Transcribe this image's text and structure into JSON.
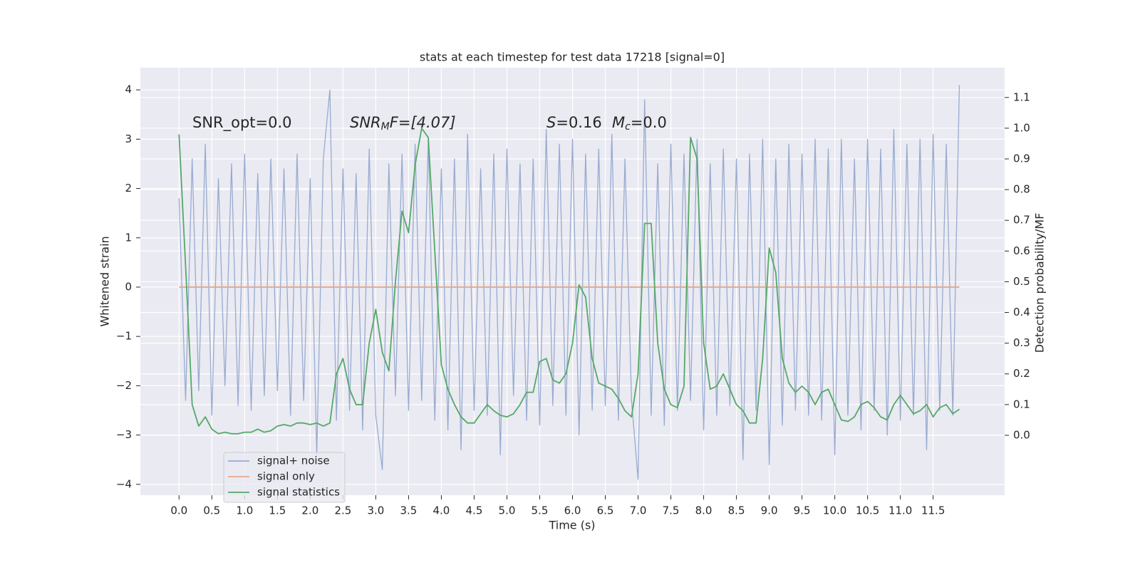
{
  "chart_data": {
    "type": "line",
    "title": "stats at each timestep for test data 17218 [signal=0]",
    "xlabel": "Time (s)",
    "ylabel": "Whitened strain",
    "y2label": "Detection probability/MF",
    "annotations": [
      [
        "SNR_opt=0.0"
      ],
      [
        "SNR",
        "M",
        "F=[4.07]"
      ],
      [
        "S",
        "=0.16"
      ],
      [
        "M",
        "c",
        "=0.0"
      ]
    ],
    "xlim": [
      -0.59,
      12.59
    ],
    "ylim": [
      -4.22,
      4.45
    ],
    "y2lim": [
      -0.195,
      1.197
    ],
    "xticks": [
      {
        "value": 0,
        "label": "0.0"
      },
      0.5,
      {
        "value": 1,
        "label": "1.0"
      },
      1.5,
      {
        "value": 2,
        "label": "2.0"
      },
      2.5,
      {
        "value": 3,
        "label": "3.0"
      },
      3.5,
      {
        "value": 4,
        "label": "4.0"
      },
      4.5,
      {
        "value": 5,
        "label": "5.0"
      },
      5.5,
      {
        "value": 6,
        "label": "6.0"
      },
      6.5,
      {
        "value": 7,
        "label": "7.0"
      },
      7.5,
      {
        "value": 8,
        "label": "8.0"
      },
      8.5,
      {
        "value": 9,
        "label": "9.0"
      },
      9.5,
      {
        "value": 10,
        "label": "10.0"
      },
      10.5,
      {
        "value": 11,
        "label": "11.0"
      },
      11.5
    ],
    "yticks": [
      {
        "value": -4,
        "label": "−4"
      },
      {
        "value": -3,
        "label": "−3"
      },
      {
        "value": -2,
        "label": "−2"
      },
      {
        "value": -1,
        "label": "−1"
      },
      0,
      1,
      2,
      3,
      4
    ],
    "y2ticks": [
      {
        "value": 0,
        "label": "0.0"
      },
      0.1,
      0.2,
      0.3,
      0.4,
      0.5,
      0.6,
      0.7,
      0.8,
      0.9,
      {
        "value": 1,
        "label": "1.0"
      },
      1.1
    ],
    "grid": true,
    "legend": "lower left",
    "x": [
      0,
      0.1,
      0.2,
      0.3,
      0.4,
      0.5,
      0.6,
      0.7,
      0.8,
      0.9,
      1,
      1.1,
      1.2,
      1.3,
      1.4,
      1.5,
      1.6,
      1.7,
      1.8,
      1.9,
      2,
      2.1,
      2.2,
      2.3,
      2.4,
      2.5,
      2.6,
      2.7,
      2.8,
      2.9,
      3,
      3.1,
      3.2,
      3.3,
      3.4,
      3.5,
      3.6,
      3.7,
      3.8,
      3.9,
      4,
      4.1,
      4.2,
      4.3,
      4.4,
      4.5,
      4.6,
      4.7,
      4.8,
      4.9,
      5,
      5.1,
      5.2,
      5.3,
      5.4,
      5.5,
      5.6,
      5.7,
      5.8,
      5.9,
      6,
      6.1,
      6.2,
      6.3,
      6.4,
      6.5,
      6.6,
      6.7,
      6.8,
      6.9,
      7,
      7.1,
      7.2,
      7.3,
      7.4,
      7.5,
      7.6,
      7.7,
      7.8,
      7.9,
      8,
      8.1,
      8.2,
      8.3,
      8.4,
      8.5,
      8.6,
      8.7,
      8.8,
      8.9,
      9,
      9.1,
      9.2,
      9.3,
      9.4,
      9.5,
      9.6,
      9.7,
      9.8,
      9.9,
      10,
      10.1,
      10.2,
      10.3,
      10.4,
      10.5,
      10.6,
      10.7,
      10.8,
      10.9,
      11,
      11.1,
      11.2,
      11.3,
      11.4,
      11.5,
      11.6,
      11.7,
      11.8,
      11.9
    ],
    "series": [
      {
        "name": "signal+ noise",
        "color": "#98abd0",
        "values": [
          1.8,
          -2.3,
          2.6,
          -2.1,
          2.9,
          -2.6,
          2.2,
          -2.0,
          2.5,
          -2.4,
          2.7,
          -2.5,
          2.3,
          -2.2,
          2.6,
          -2.1,
          2.4,
          -2.6,
          2.7,
          -2.3,
          2.2,
          -3.4,
          2.6,
          4.0,
          -2.7,
          2.4,
          -2.5,
          2.3,
          -2.9,
          2.8,
          -2.6,
          -3.7,
          2.5,
          -2.2,
          2.7,
          -2.5,
          2.9,
          -2.3,
          3.0,
          -2.7,
          2.4,
          -2.9,
          2.6,
          -3.3,
          3.1,
          -2.5,
          2.4,
          -2.6,
          2.7,
          -3.4,
          2.8,
          -2.2,
          2.5,
          -2.7,
          2.6,
          -2.8,
          3.2,
          -2.4,
          2.9,
          -2.6,
          3.0,
          -3.0,
          2.7,
          -2.5,
          2.8,
          -2.4,
          3.1,
          -2.7,
          2.6,
          -2.3,
          -3.9,
          3.8,
          -2.6,
          2.5,
          -2.8,
          2.9,
          -2.5,
          2.7,
          -2.3,
          3.0,
          -2.9,
          2.5,
          -2.6,
          2.8,
          -2.4,
          2.6,
          -3.5,
          2.7,
          -2.5,
          3.0,
          -3.6,
          2.6,
          -2.8,
          2.9,
          -2.5,
          2.7,
          -2.6,
          3.0,
          -2.7,
          2.8,
          -3.4,
          3.0,
          -2.6,
          2.6,
          -2.9,
          3.0,
          -2.5,
          2.8,
          -3.0,
          3.2,
          -2.7,
          2.9,
          -2.6,
          3.0,
          -3.3,
          3.1,
          -2.5,
          2.9,
          -2.6,
          4.1
        ]
      },
      {
        "name": "signal only",
        "color": "#e6a98a",
        "values": [
          0,
          0,
          0,
          0,
          0,
          0,
          0,
          0,
          0,
          0,
          0,
          0,
          0,
          0,
          0,
          0,
          0,
          0,
          0,
          0,
          0,
          0,
          0,
          0,
          0,
          0,
          0,
          0,
          0,
          0,
          0,
          0,
          0,
          0,
          0,
          0,
          0,
          0,
          0,
          0,
          0,
          0,
          0,
          0,
          0,
          0,
          0,
          0,
          0,
          0,
          0,
          0,
          0,
          0,
          0,
          0,
          0,
          0,
          0,
          0,
          0,
          0,
          0,
          0,
          0,
          0,
          0,
          0,
          0,
          0,
          0,
          0,
          0,
          0,
          0,
          0,
          0,
          0,
          0,
          0,
          0,
          0,
          0,
          0,
          0,
          0,
          0,
          0,
          0,
          0,
          0,
          0,
          0,
          0,
          0,
          0,
          0,
          0,
          0,
          0,
          0,
          0,
          0,
          0,
          0,
          0,
          0,
          0,
          0,
          0,
          0,
          0,
          0,
          0,
          0,
          0,
          0,
          0,
          0,
          0
        ]
      },
      {
        "name": "signal statistics",
        "color": "#55a868",
        "axis": "y2",
        "values": [
          0.98,
          0.55,
          0.1,
          0.03,
          0.06,
          0.02,
          0.005,
          0.01,
          0.005,
          0.005,
          0.01,
          0.01,
          0.02,
          0.01,
          0.015,
          0.03,
          0.035,
          0.03,
          0.04,
          0.04,
          0.035,
          0.04,
          0.03,
          0.04,
          0.2,
          0.25,
          0.15,
          0.1,
          0.1,
          0.3,
          0.41,
          0.27,
          0.21,
          0.5,
          0.73,
          0.66,
          0.88,
          1.0,
          0.97,
          0.6,
          0.23,
          0.15,
          0.1,
          0.06,
          0.04,
          0.04,
          0.07,
          0.1,
          0.08,
          0.065,
          0.06,
          0.07,
          0.1,
          0.14,
          0.14,
          0.24,
          0.25,
          0.18,
          0.17,
          0.2,
          0.3,
          0.49,
          0.45,
          0.25,
          0.17,
          0.16,
          0.15,
          0.12,
          0.08,
          0.06,
          0.2,
          0.69,
          0.69,
          0.3,
          0.15,
          0.1,
          0.09,
          0.16,
          0.97,
          0.9,
          0.3,
          0.15,
          0.16,
          0.2,
          0.15,
          0.1,
          0.08,
          0.04,
          0.04,
          0.25,
          0.61,
          0.53,
          0.25,
          0.17,
          0.14,
          0.16,
          0.14,
          0.1,
          0.14,
          0.15,
          0.1,
          0.05,
          0.045,
          0.06,
          0.1,
          0.11,
          0.09,
          0.06,
          0.05,
          0.1,
          0.13,
          0.1,
          0.07,
          0.08,
          0.1,
          0.06,
          0.09,
          0.1,
          0.07,
          0.085
        ]
      }
    ]
  }
}
